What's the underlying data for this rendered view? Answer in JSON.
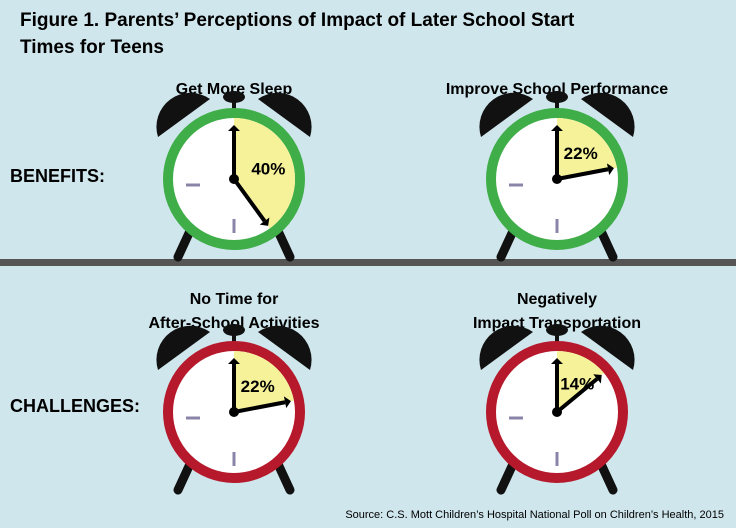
{
  "title_line1": "Figure 1. Parents’ Perceptions of Impact of Later School Start",
  "title_line2": "Times for Teens",
  "rows": {
    "benefits": "BENEFITS:",
    "challenges": "CHALLENGES:"
  },
  "source": "Source: C.S. Mott Children’s Hospital National Poll on Children’s Health, 2015",
  "colors": {
    "background": "#cfe6ec",
    "benefit_ring": "#3fae49",
    "challenge_ring": "#b5192b",
    "wedge": "#f6f29a",
    "bell": "#111111",
    "divider": "#555555"
  },
  "chart_data": [
    {
      "type": "pie",
      "group": "BENEFITS",
      "title": [
        "Get More Sleep"
      ],
      "value": 40,
      "label": "40%"
    },
    {
      "type": "pie",
      "group": "BENEFITS",
      "title": [
        "Improve School Performance"
      ],
      "value": 22,
      "label": "22%"
    },
    {
      "type": "pie",
      "group": "CHALLENGES",
      "title": [
        "No Time for",
        "After-School Activities"
      ],
      "value": 22,
      "label": "22%"
    },
    {
      "type": "pie",
      "group": "CHALLENGES",
      "title": [
        "Negatively",
        "Impact Transportation"
      ],
      "value": 14,
      "label": "14%"
    }
  ]
}
